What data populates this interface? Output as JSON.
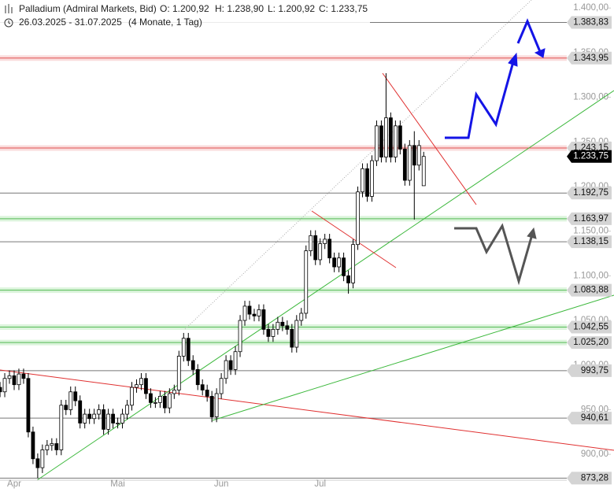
{
  "chart_data": {
    "type": "candlestick",
    "title": "Palladium (Admiral Markets, Bid)",
    "ohlc_labels": [
      "O: 1.200,92",
      "H: 1.238,90",
      "L: 1.200,92",
      "C: 1.233,75"
    ],
    "subtitle": "26.03.2025 - 31.07.2025",
    "period": "(4 Monate, 1 Tag)",
    "categories": [
      null,
      null,
      null,
      null,
      "Apr",
      null,
      null,
      null,
      null,
      null,
      null,
      null,
      null,
      null,
      null,
      null,
      null,
      null,
      null,
      null,
      null,
      null,
      null,
      null,
      null,
      null,
      "Mai",
      null,
      null,
      null,
      null,
      null,
      null,
      null,
      null,
      null,
      null,
      null,
      null,
      null,
      null,
      null,
      null,
      null,
      null,
      null,
      null,
      null,
      "Jun",
      null,
      null,
      null,
      null,
      null,
      null,
      null,
      null,
      null,
      null,
      null,
      null,
      null,
      null,
      null,
      null,
      null,
      null,
      null,
      null,
      "Jul",
      null,
      null,
      null,
      null,
      null,
      null,
      null,
      null,
      null,
      null,
      null,
      null,
      null,
      null,
      null,
      null,
      null,
      null,
      null,
      null,
      null,
      null
    ],
    "open": [
      985,
      975,
      970,
      985,
      988,
      978,
      990,
      985,
      925,
      895,
      885,
      905,
      910,
      912,
      905,
      955,
      950,
      970,
      960,
      935,
      945,
      940,
      945,
      950,
      928,
      945,
      935,
      935,
      945,
      955,
      975,
      978,
      985,
      968,
      958,
      958,
      965,
      952,
      968,
      972,
      1010,
      1030,
      1005,
      995,
      978,
      972,
      965,
      942,
      968,
      985,
      1005,
      995,
      1015,
      1050,
      1066,
      1057,
      1055,
      1062,
      1040,
      1032,
      1040,
      1048,
      1044,
      1040,
      1020,
      1050,
      1058,
      1128,
      1145,
      1118,
      1136,
      1141,
      1120,
      1110,
      1120,
      1100,
      1092,
      1135,
      1194,
      1220,
      1189,
      1229,
      1268,
      1233,
      1277,
      1233,
      1268,
      1242,
      1207,
      1246,
      1224,
      1200.92
    ],
    "high": [
      991,
      981,
      991,
      994,
      994,
      996,
      996,
      991,
      931,
      901,
      911,
      916,
      918,
      918,
      961,
      961,
      976,
      976,
      966,
      951,
      951,
      951,
      956,
      956,
      951,
      951,
      941,
      951,
      961,
      981,
      984,
      991,
      991,
      974,
      964,
      971,
      971,
      974,
      978,
      1016,
      1036,
      1036,
      1011,
      1001,
      984,
      978,
      971,
      974,
      991,
      1011,
      1011,
      1021,
      1056,
      1072,
      1072,
      1063,
      1068,
      1068,
      1046,
      1046,
      1054,
      1054,
      1050,
      1046,
      1056,
      1064,
      1134,
      1151,
      1151,
      1142,
      1147,
      1147,
      1126,
      1126,
      1126,
      1106,
      1141,
      1200,
      1226,
      1226,
      1235,
      1274,
      1274,
      1327,
      1283,
      1274,
      1274,
      1248,
      1252,
      1262,
      1252,
      1238.9
    ],
    "low": [
      969,
      964,
      964,
      979,
      972,
      972,
      979,
      919,
      889,
      873.28,
      879,
      899,
      904,
      899,
      899,
      944,
      944,
      954,
      929,
      929,
      934,
      934,
      939,
      922,
      922,
      929,
      929,
      929,
      939,
      949,
      969,
      972,
      962,
      952,
      952,
      952,
      946,
      946,
      962,
      966,
      1004,
      999,
      989,
      972,
      966,
      959,
      936,
      936,
      962,
      979,
      989,
      989,
      1009,
      1044,
      1051,
      1049,
      1049,
      1034,
      1026,
      1026,
      1034,
      1038,
      1034,
      1014,
      1014,
      1044,
      1052,
      1122,
      1112,
      1112,
      1130,
      1114,
      1104,
      1104,
      1094,
      1080,
      1086,
      1129,
      1188,
      1183,
      1183,
      1223,
      1227,
      1227,
      1227,
      1227,
      1236,
      1201,
      1201,
      1163,
      1218,
      1200.92
    ],
    "close": [
      975,
      970,
      985,
      988,
      978,
      990,
      985,
      925,
      895,
      885,
      905,
      910,
      912,
      905,
      955,
      950,
      970,
      960,
      935,
      945,
      940,
      945,
      950,
      928,
      945,
      935,
      935,
      945,
      955,
      975,
      978,
      985,
      968,
      958,
      958,
      965,
      952,
      968,
      972,
      1010,
      1030,
      1005,
      995,
      978,
      972,
      965,
      942,
      968,
      985,
      1005,
      995,
      1015,
      1050,
      1066,
      1057,
      1055,
      1062,
      1040,
      1032,
      1040,
      1048,
      1044,
      1040,
      1020,
      1050,
      1058,
      1128,
      1145,
      1118,
      1136,
      1141,
      1120,
      1110,
      1120,
      1100,
      1092,
      1135,
      1194,
      1220,
      1189,
      1229,
      1268,
      1233,
      1277,
      1233,
      1268,
      1242,
      1207,
      1246,
      1224,
      1246,
      1233.75
    ],
    "up_color": "#ffffff",
    "down_color": "#000000",
    "ylim": [
      871,
      1409
    ],
    "yticks": [
      {
        "value": 900,
        "label": "900,00"
      },
      {
        "value": 950,
        "label": "950,00"
      },
      {
        "value": 1000,
        "label": "1.000,00"
      },
      {
        "value": 1050,
        "label": "1.050,00"
      },
      {
        "value": 1100,
        "label": "1.100,00"
      },
      {
        "value": 1150,
        "label": "1.150,00"
      },
      {
        "value": 1200,
        "label": "1.200,00"
      },
      {
        "value": 1250,
        "label": "1.250,00"
      },
      {
        "value": 1300,
        "label": "1.300,00"
      },
      {
        "value": 1350,
        "label": "1.350,00"
      },
      {
        "value": 1400,
        "label": "1.400,00"
      }
    ],
    "levels": [
      {
        "value": 1383.83,
        "label": "1.383,83",
        "style": "gray"
      },
      {
        "value": 1343.95,
        "label": "1.343,95",
        "style": "red"
      },
      {
        "value": 1243.15,
        "label": "1.243,15",
        "style": "red"
      },
      {
        "value": 1233.75,
        "label": "1.233,75",
        "style": "current"
      },
      {
        "value": 1192.75,
        "label": "1.192,75",
        "style": "gray"
      },
      {
        "value": 1163.97,
        "label": "1.163,97",
        "style": "green"
      },
      {
        "value": 1138.15,
        "label": "1.138,15",
        "style": "gray"
      },
      {
        "value": 1083.88,
        "label": "1.083,88",
        "style": "green"
      },
      {
        "value": 1042.55,
        "label": "1.042,55",
        "style": "green"
      },
      {
        "value": 1025.2,
        "label": "1.025,20",
        "style": "green"
      },
      {
        "value": 993.75,
        "label": "993,75",
        "style": "gray"
      },
      {
        "value": 940.61,
        "label": "940,61",
        "style": "gray"
      },
      {
        "value": 873.28,
        "label": "873,28",
        "style": "gray"
      }
    ]
  }
}
